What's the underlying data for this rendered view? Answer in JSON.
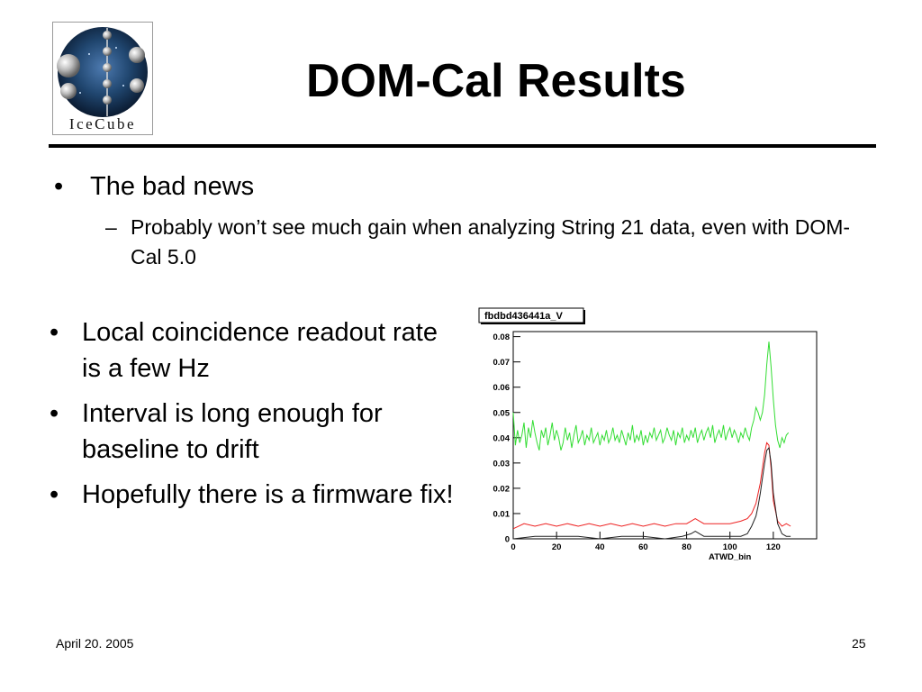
{
  "logo": {
    "text": "IceCube"
  },
  "title": "DOM-Cal Results",
  "bullets_top": [
    {
      "text": "The bad news",
      "sub": [
        {
          "text": "Probably won’t see much gain when analyzing String 21 data, even with DOM-Cal 5.0"
        }
      ]
    }
  ],
  "bullets_left": [
    {
      "text": "Local coincidence readout rate is a few Hz"
    },
    {
      "text": "Interval is long enough for baseline to drift"
    },
    {
      "text": "Hopefully there is a firmware fix!"
    }
  ],
  "footer": {
    "date": "April 20. 2005",
    "page": "25"
  },
  "chart_data": {
    "type": "line",
    "title": "fbdbd436441a_V",
    "xlabel": "ATWD_bin",
    "ylabel": "",
    "xlim": [
      0,
      140
    ],
    "ylim": [
      0,
      0.082
    ],
    "xticks": [
      0,
      20,
      40,
      60,
      80,
      100,
      120
    ],
    "xtick_labels": [
      "0",
      "20",
      "40",
      "60",
      "80",
      "100",
      "120"
    ],
    "yticks": [
      0,
      0.01,
      0.02,
      0.03,
      0.04,
      0.05,
      0.06,
      0.07,
      0.08
    ],
    "ytick_labels": [
      "0",
      "0.01",
      "0.02",
      "0.03",
      "0.04",
      "0.05",
      "0.06",
      "0.07",
      "0.08"
    ],
    "grid": false,
    "series": [
      {
        "color": "#33dd33",
        "x": [
          0,
          1,
          2,
          3,
          4,
          5,
          6,
          7,
          8,
          9,
          10,
          11,
          12,
          13,
          14,
          15,
          16,
          17,
          18,
          19,
          20,
          21,
          22,
          23,
          24,
          25,
          26,
          27,
          28,
          29,
          30,
          31,
          32,
          33,
          34,
          35,
          36,
          37,
          38,
          39,
          40,
          41,
          42,
          43,
          44,
          45,
          46,
          47,
          48,
          49,
          50,
          51,
          52,
          53,
          54,
          55,
          56,
          57,
          58,
          59,
          60,
          61,
          62,
          63,
          64,
          65,
          66,
          67,
          68,
          69,
          70,
          71,
          72,
          73,
          74,
          75,
          76,
          77,
          78,
          79,
          80,
          81,
          82,
          83,
          84,
          85,
          86,
          87,
          88,
          89,
          90,
          91,
          92,
          93,
          94,
          95,
          96,
          97,
          98,
          99,
          100,
          101,
          102,
          103,
          104,
          105,
          106,
          107,
          108,
          109,
          110,
          111,
          112,
          113,
          114,
          115,
          116,
          117,
          118,
          119,
          120,
          121,
          122,
          123,
          124,
          125,
          126,
          127
        ],
        "values": [
          0.05,
          0.037,
          0.043,
          0.038,
          0.041,
          0.046,
          0.036,
          0.044,
          0.04,
          0.047,
          0.042,
          0.038,
          0.035,
          0.043,
          0.04,
          0.044,
          0.037,
          0.041,
          0.046,
          0.039,
          0.043,
          0.04,
          0.035,
          0.038,
          0.044,
          0.039,
          0.042,
          0.036,
          0.041,
          0.045,
          0.038,
          0.04,
          0.043,
          0.037,
          0.041,
          0.039,
          0.044,
          0.038,
          0.04,
          0.042,
          0.037,
          0.041,
          0.039,
          0.043,
          0.038,
          0.04,
          0.044,
          0.039,
          0.041,
          0.038,
          0.043,
          0.04,
          0.037,
          0.042,
          0.039,
          0.045,
          0.038,
          0.041,
          0.039,
          0.043,
          0.037,
          0.041,
          0.038,
          0.042,
          0.04,
          0.044,
          0.039,
          0.041,
          0.043,
          0.038,
          0.04,
          0.044,
          0.041,
          0.039,
          0.043,
          0.037,
          0.042,
          0.04,
          0.044,
          0.038,
          0.041,
          0.039,
          0.043,
          0.04,
          0.044,
          0.038,
          0.041,
          0.043,
          0.039,
          0.042,
          0.044,
          0.04,
          0.045,
          0.038,
          0.041,
          0.043,
          0.04,
          0.045,
          0.039,
          0.042,
          0.044,
          0.04,
          0.043,
          0.041,
          0.038,
          0.042,
          0.04,
          0.044,
          0.041,
          0.039,
          0.044,
          0.047,
          0.052,
          0.05,
          0.047,
          0.05,
          0.057,
          0.069,
          0.078,
          0.068,
          0.055,
          0.045,
          0.039,
          0.036,
          0.04,
          0.038,
          0.041,
          0.042
        ]
      },
      {
        "color": "#ee2222",
        "x": [
          0,
          5,
          10,
          15,
          20,
          25,
          30,
          35,
          40,
          45,
          50,
          55,
          60,
          65,
          70,
          75,
          80,
          82,
          84,
          86,
          88,
          90,
          95,
          100,
          105,
          108,
          110,
          112,
          113,
          114,
          115,
          116,
          117,
          118,
          119,
          120,
          122,
          124,
          126,
          128
        ],
        "values": [
          0.004,
          0.006,
          0.005,
          0.006,
          0.005,
          0.006,
          0.005,
          0.006,
          0.005,
          0.006,
          0.005,
          0.006,
          0.005,
          0.006,
          0.005,
          0.006,
          0.006,
          0.007,
          0.008,
          0.007,
          0.006,
          0.006,
          0.006,
          0.006,
          0.007,
          0.008,
          0.01,
          0.014,
          0.018,
          0.022,
          0.028,
          0.034,
          0.038,
          0.037,
          0.028,
          0.015,
          0.007,
          0.005,
          0.006,
          0.005
        ]
      },
      {
        "color": "#222222",
        "x": [
          0,
          10,
          20,
          30,
          40,
          50,
          60,
          70,
          78,
          82,
          84,
          86,
          88,
          90,
          100,
          105,
          108,
          110,
          112,
          113,
          114,
          115,
          116,
          117,
          118,
          119,
          120,
          122,
          124,
          126,
          128
        ],
        "values": [
          0.0,
          0.001,
          0.001,
          0.001,
          0.0,
          0.001,
          0.001,
          0.0,
          0.001,
          0.002,
          0.003,
          0.002,
          0.001,
          0.001,
          0.001,
          0.001,
          0.002,
          0.005,
          0.009,
          0.013,
          0.018,
          0.024,
          0.03,
          0.035,
          0.036,
          0.03,
          0.018,
          0.006,
          0.002,
          0.001,
          0.001
        ]
      }
    ]
  }
}
